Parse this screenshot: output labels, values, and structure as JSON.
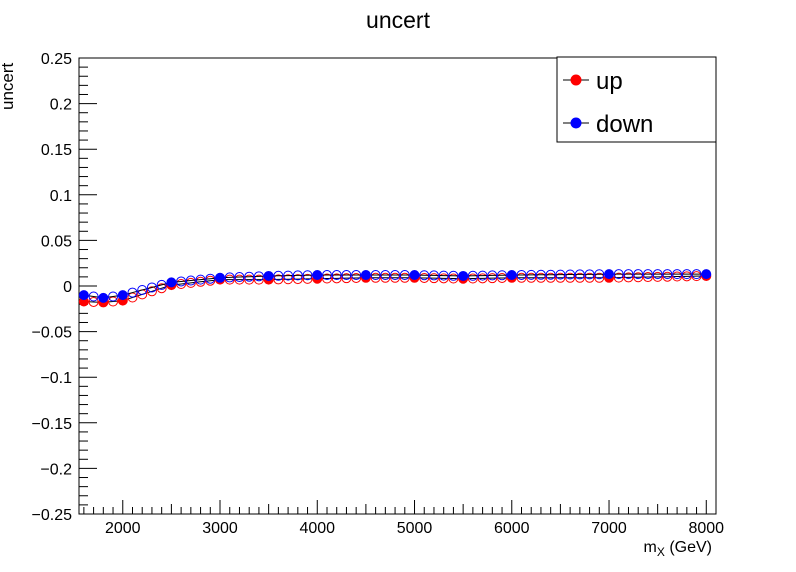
{
  "chart_data": {
    "type": "line",
    "title": "uncert",
    "ylabel": "uncert",
    "xlabel_main": "m",
    "xlabel_sub": "X",
    "xlabel_rest": " (GeV)",
    "xlim": [
      1550,
      8100
    ],
    "ylim": [
      -0.25,
      0.25
    ],
    "x_ticks": [
      2000,
      3000,
      4000,
      5000,
      6000,
      7000,
      8000
    ],
    "x_tick_labels": [
      "2000",
      "3000",
      "4000",
      "5000",
      "6000",
      "7000",
      "8000"
    ],
    "y_ticks": [
      -0.25,
      -0.2,
      -0.15,
      -0.1,
      -0.05,
      0,
      0.05,
      0.1,
      0.15,
      0.2,
      0.25
    ],
    "y_tick_labels": [
      "−0.25",
      "−0.2",
      "−0.15",
      "−0.1",
      "−0.05",
      "0",
      "0.05",
      "0.1",
      "0.15",
      "0.2",
      "0.25"
    ],
    "legend_position": "top-right",
    "series": [
      {
        "name": "up",
        "color": "#ff0000",
        "x": [
          1600,
          1800,
          2000,
          2500,
          3000,
          3500,
          4000,
          4500,
          5000,
          5500,
          6000,
          7000,
          8000
        ],
        "values": [
          -0.017,
          -0.018,
          -0.016,
          0.001,
          0.007,
          0.007,
          0.008,
          0.009,
          0.009,
          0.008,
          0.009,
          0.009,
          0.011
        ]
      },
      {
        "name": "down",
        "color": "#0000ff",
        "x": [
          1600,
          1800,
          2000,
          2500,
          3000,
          3500,
          4000,
          4500,
          5000,
          5500,
          6000,
          7000,
          8000
        ],
        "values": [
          -0.01,
          -0.013,
          -0.01,
          0.004,
          0.009,
          0.011,
          0.012,
          0.012,
          0.012,
          0.011,
          0.012,
          0.013,
          0.013
        ]
      }
    ]
  }
}
